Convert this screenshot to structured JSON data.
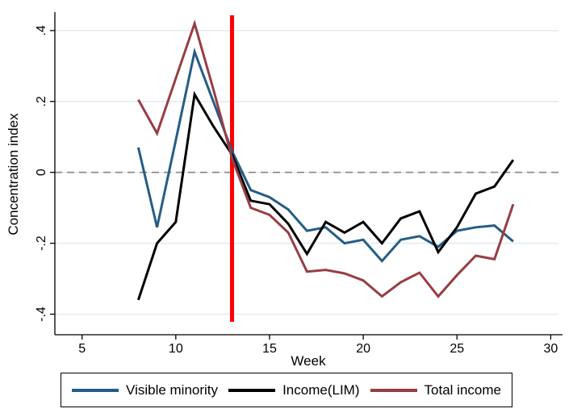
{
  "figure": {
    "background": "#ffffff"
  },
  "chart_data": {
    "type": "line",
    "title": "",
    "xlabel": "Week",
    "ylabel": "Concentration index",
    "x": [
      8,
      9,
      10,
      11,
      12,
      13,
      14,
      15,
      16,
      17,
      18,
      19,
      20,
      21,
      22,
      23,
      24,
      25,
      26,
      27,
      28
    ],
    "series": [
      {
        "name": "Visible minority",
        "color": "#245d85",
        "values": [
          0.07,
          -0.155,
          0.09,
          0.34,
          0.2,
          0.06,
          -0.05,
          -0.07,
          -0.105,
          -0.165,
          -0.155,
          -0.2,
          -0.19,
          -0.25,
          -0.19,
          -0.18,
          -0.21,
          -0.165,
          -0.155,
          -0.15,
          -0.195
        ]
      },
      {
        "name": "Income(LIM)",
        "color": "#000000",
        "values": [
          -0.36,
          -0.2,
          -0.14,
          0.22,
          0.13,
          0.05,
          -0.08,
          -0.09,
          -0.145,
          -0.23,
          -0.14,
          -0.17,
          -0.14,
          -0.2,
          -0.13,
          -0.11,
          -0.225,
          -0.155,
          -0.06,
          -0.04,
          0.035
        ]
      },
      {
        "name": "Total income",
        "color": "#983d44",
        "values": [
          0.205,
          0.11,
          0.265,
          0.42,
          0.235,
          0.04,
          -0.1,
          -0.12,
          -0.17,
          -0.28,
          -0.275,
          -0.285,
          -0.305,
          -0.35,
          -0.31,
          -0.283,
          -0.35,
          -0.29,
          -0.235,
          -0.245,
          -0.09
        ]
      }
    ],
    "xticks": [
      5,
      10,
      15,
      20,
      25,
      30
    ],
    "yticks": [
      {
        "label": ".4",
        "value": 0.4
      },
      {
        "label": ".2",
        "value": 0.2
      },
      {
        "label": "0",
        "value": 0.0
      },
      {
        "label": "-.2",
        "value": -0.2
      },
      {
        "label": "-.4",
        "value": -0.4
      }
    ],
    "xlim": [
      3.55,
      30.5
    ],
    "ylim": [
      -0.458,
      0.452
    ],
    "grid": true,
    "gridline_color": "#e4ebf3",
    "zero_line": {
      "y": 0,
      "style": "dashed",
      "color": "#868686"
    },
    "vline": {
      "x": 13,
      "color": "#fe0000"
    },
    "legend_position": "bottom"
  }
}
